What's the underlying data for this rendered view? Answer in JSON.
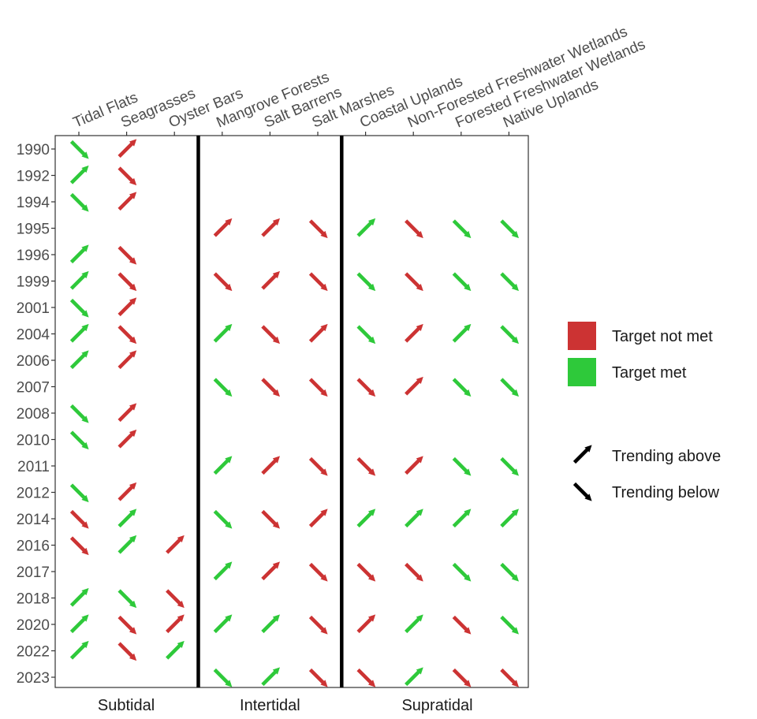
{
  "chart_data": {
    "type": "heatmap",
    "categories": [
      "Tidal Flats",
      "Seagrasses",
      "Oyster Bars",
      "Mangrove Forests",
      "Salt Barrens",
      "Salt Marshes",
      "Coastal Uplands",
      "Non-Forested Freshwater Wetlands",
      "Forested Freshwater Wetlands",
      "Native Uplands"
    ],
    "years": [
      "1990",
      "1992",
      "1994",
      "1995",
      "1996",
      "1999",
      "2001",
      "2004",
      "2006",
      "2007",
      "2008",
      "2010",
      "2011",
      "2012",
      "2014",
      "2016",
      "2017",
      "2018",
      "2020",
      "2022",
      "2023"
    ],
    "groups": [
      {
        "label": "Subtidal",
        "categories": [
          "Tidal Flats",
          "Seagrasses",
          "Oyster Bars"
        ]
      },
      {
        "label": "Intertidal",
        "categories": [
          "Mangrove Forests",
          "Salt Barrens",
          "Salt Marshes"
        ]
      },
      {
        "label": "Supratidal",
        "categories": [
          "Coastal Uplands",
          "Non-Forested Freshwater Wetlands",
          "Forested Freshwater Wetlands",
          "Native Uplands"
        ]
      }
    ],
    "points": [
      {
        "year": "1990",
        "category": "Tidal Flats",
        "target": "met",
        "trend": "below"
      },
      {
        "year": "1990",
        "category": "Seagrasses",
        "target": "not met",
        "trend": "above"
      },
      {
        "year": "1992",
        "category": "Tidal Flats",
        "target": "met",
        "trend": "above"
      },
      {
        "year": "1992",
        "category": "Seagrasses",
        "target": "not met",
        "trend": "below"
      },
      {
        "year": "1994",
        "category": "Tidal Flats",
        "target": "met",
        "trend": "below"
      },
      {
        "year": "1994",
        "category": "Seagrasses",
        "target": "not met",
        "trend": "above"
      },
      {
        "year": "1995",
        "category": "Mangrove Forests",
        "target": "not met",
        "trend": "above"
      },
      {
        "year": "1995",
        "category": "Salt Barrens",
        "target": "not met",
        "trend": "above"
      },
      {
        "year": "1995",
        "category": "Salt Marshes",
        "target": "not met",
        "trend": "below"
      },
      {
        "year": "1995",
        "category": "Coastal Uplands",
        "target": "met",
        "trend": "above"
      },
      {
        "year": "1995",
        "category": "Non-Forested Freshwater Wetlands",
        "target": "not met",
        "trend": "below"
      },
      {
        "year": "1995",
        "category": "Forested Freshwater Wetlands",
        "target": "met",
        "trend": "below"
      },
      {
        "year": "1995",
        "category": "Native Uplands",
        "target": "met",
        "trend": "below"
      },
      {
        "year": "1996",
        "category": "Tidal Flats",
        "target": "met",
        "trend": "above"
      },
      {
        "year": "1996",
        "category": "Seagrasses",
        "target": "not met",
        "trend": "below"
      },
      {
        "year": "1999",
        "category": "Tidal Flats",
        "target": "met",
        "trend": "above"
      },
      {
        "year": "1999",
        "category": "Seagrasses",
        "target": "not met",
        "trend": "below"
      },
      {
        "year": "1999",
        "category": "Mangrove Forests",
        "target": "not met",
        "trend": "below"
      },
      {
        "year": "1999",
        "category": "Salt Barrens",
        "target": "not met",
        "trend": "above"
      },
      {
        "year": "1999",
        "category": "Salt Marshes",
        "target": "not met",
        "trend": "below"
      },
      {
        "year": "1999",
        "category": "Coastal Uplands",
        "target": "met",
        "trend": "below"
      },
      {
        "year": "1999",
        "category": "Non-Forested Freshwater Wetlands",
        "target": "not met",
        "trend": "below"
      },
      {
        "year": "1999",
        "category": "Forested Freshwater Wetlands",
        "target": "met",
        "trend": "below"
      },
      {
        "year": "1999",
        "category": "Native Uplands",
        "target": "met",
        "trend": "below"
      },
      {
        "year": "2001",
        "category": "Tidal Flats",
        "target": "met",
        "trend": "below"
      },
      {
        "year": "2001",
        "category": "Seagrasses",
        "target": "not met",
        "trend": "above"
      },
      {
        "year": "2004",
        "category": "Tidal Flats",
        "target": "met",
        "trend": "above"
      },
      {
        "year": "2004",
        "category": "Seagrasses",
        "target": "not met",
        "trend": "below"
      },
      {
        "year": "2004",
        "category": "Mangrove Forests",
        "target": "met",
        "trend": "above"
      },
      {
        "year": "2004",
        "category": "Salt Barrens",
        "target": "not met",
        "trend": "below"
      },
      {
        "year": "2004",
        "category": "Salt Marshes",
        "target": "not met",
        "trend": "above"
      },
      {
        "year": "2004",
        "category": "Coastal Uplands",
        "target": "met",
        "trend": "below"
      },
      {
        "year": "2004",
        "category": "Non-Forested Freshwater Wetlands",
        "target": "not met",
        "trend": "above"
      },
      {
        "year": "2004",
        "category": "Forested Freshwater Wetlands",
        "target": "met",
        "trend": "above"
      },
      {
        "year": "2004",
        "category": "Native Uplands",
        "target": "met",
        "trend": "below"
      },
      {
        "year": "2006",
        "category": "Tidal Flats",
        "target": "met",
        "trend": "above"
      },
      {
        "year": "2006",
        "category": "Seagrasses",
        "target": "not met",
        "trend": "above"
      },
      {
        "year": "2007",
        "category": "Mangrove Forests",
        "target": "met",
        "trend": "below"
      },
      {
        "year": "2007",
        "category": "Salt Barrens",
        "target": "not met",
        "trend": "below"
      },
      {
        "year": "2007",
        "category": "Salt Marshes",
        "target": "not met",
        "trend": "below"
      },
      {
        "year": "2007",
        "category": "Coastal Uplands",
        "target": "not met",
        "trend": "below"
      },
      {
        "year": "2007",
        "category": "Non-Forested Freshwater Wetlands",
        "target": "not met",
        "trend": "above"
      },
      {
        "year": "2007",
        "category": "Forested Freshwater Wetlands",
        "target": "met",
        "trend": "below"
      },
      {
        "year": "2007",
        "category": "Native Uplands",
        "target": "met",
        "trend": "below"
      },
      {
        "year": "2008",
        "category": "Tidal Flats",
        "target": "met",
        "trend": "below"
      },
      {
        "year": "2008",
        "category": "Seagrasses",
        "target": "not met",
        "trend": "above"
      },
      {
        "year": "2010",
        "category": "Tidal Flats",
        "target": "met",
        "trend": "below"
      },
      {
        "year": "2010",
        "category": "Seagrasses",
        "target": "not met",
        "trend": "above"
      },
      {
        "year": "2011",
        "category": "Mangrove Forests",
        "target": "met",
        "trend": "above"
      },
      {
        "year": "2011",
        "category": "Salt Barrens",
        "target": "not met",
        "trend": "above"
      },
      {
        "year": "2011",
        "category": "Salt Marshes",
        "target": "not met",
        "trend": "below"
      },
      {
        "year": "2011",
        "category": "Coastal Uplands",
        "target": "not met",
        "trend": "below"
      },
      {
        "year": "2011",
        "category": "Non-Forested Freshwater Wetlands",
        "target": "not met",
        "trend": "above"
      },
      {
        "year": "2011",
        "category": "Forested Freshwater Wetlands",
        "target": "met",
        "trend": "below"
      },
      {
        "year": "2011",
        "category": "Native Uplands",
        "target": "met",
        "trend": "below"
      },
      {
        "year": "2012",
        "category": "Tidal Flats",
        "target": "met",
        "trend": "below"
      },
      {
        "year": "2012",
        "category": "Seagrasses",
        "target": "not met",
        "trend": "above"
      },
      {
        "year": "2014",
        "category": "Tidal Flats",
        "target": "not met",
        "trend": "below"
      },
      {
        "year": "2014",
        "category": "Seagrasses",
        "target": "met",
        "trend": "above"
      },
      {
        "year": "2014",
        "category": "Mangrove Forests",
        "target": "met",
        "trend": "below"
      },
      {
        "year": "2014",
        "category": "Salt Barrens",
        "target": "not met",
        "trend": "below"
      },
      {
        "year": "2014",
        "category": "Salt Marshes",
        "target": "not met",
        "trend": "above"
      },
      {
        "year": "2014",
        "category": "Coastal Uplands",
        "target": "met",
        "trend": "above"
      },
      {
        "year": "2014",
        "category": "Non-Forested Freshwater Wetlands",
        "target": "met",
        "trend": "above"
      },
      {
        "year": "2014",
        "category": "Forested Freshwater Wetlands",
        "target": "met",
        "trend": "above"
      },
      {
        "year": "2014",
        "category": "Native Uplands",
        "target": "met",
        "trend": "above"
      },
      {
        "year": "2016",
        "category": "Tidal Flats",
        "target": "not met",
        "trend": "below"
      },
      {
        "year": "2016",
        "category": "Seagrasses",
        "target": "met",
        "trend": "above"
      },
      {
        "year": "2016",
        "category": "Oyster Bars",
        "target": "not met",
        "trend": "above"
      },
      {
        "year": "2017",
        "category": "Mangrove Forests",
        "target": "met",
        "trend": "above"
      },
      {
        "year": "2017",
        "category": "Salt Barrens",
        "target": "not met",
        "trend": "above"
      },
      {
        "year": "2017",
        "category": "Salt Marshes",
        "target": "not met",
        "trend": "below"
      },
      {
        "year": "2017",
        "category": "Coastal Uplands",
        "target": "not met",
        "trend": "below"
      },
      {
        "year": "2017",
        "category": "Non-Forested Freshwater Wetlands",
        "target": "not met",
        "trend": "below"
      },
      {
        "year": "2017",
        "category": "Forested Freshwater Wetlands",
        "target": "met",
        "trend": "below"
      },
      {
        "year": "2017",
        "category": "Native Uplands",
        "target": "met",
        "trend": "below"
      },
      {
        "year": "2018",
        "category": "Tidal Flats",
        "target": "met",
        "trend": "above"
      },
      {
        "year": "2018",
        "category": "Seagrasses",
        "target": "met",
        "trend": "below"
      },
      {
        "year": "2018",
        "category": "Oyster Bars",
        "target": "not met",
        "trend": "below"
      },
      {
        "year": "2020",
        "category": "Tidal Flats",
        "target": "met",
        "trend": "above"
      },
      {
        "year": "2020",
        "category": "Seagrasses",
        "target": "not met",
        "trend": "below"
      },
      {
        "year": "2020",
        "category": "Oyster Bars",
        "target": "not met",
        "trend": "above"
      },
      {
        "year": "2020",
        "category": "Mangrove Forests",
        "target": "met",
        "trend": "above"
      },
      {
        "year": "2020",
        "category": "Salt Barrens",
        "target": "met",
        "trend": "above"
      },
      {
        "year": "2020",
        "category": "Salt Marshes",
        "target": "not met",
        "trend": "below"
      },
      {
        "year": "2020",
        "category": "Coastal Uplands",
        "target": "not met",
        "trend": "above"
      },
      {
        "year": "2020",
        "category": "Non-Forested Freshwater Wetlands",
        "target": "met",
        "trend": "above"
      },
      {
        "year": "2020",
        "category": "Forested Freshwater Wetlands",
        "target": "not met",
        "trend": "below"
      },
      {
        "year": "2020",
        "category": "Native Uplands",
        "target": "met",
        "trend": "below"
      },
      {
        "year": "2022",
        "category": "Tidal Flats",
        "target": "met",
        "trend": "above"
      },
      {
        "year": "2022",
        "category": "Seagrasses",
        "target": "not met",
        "trend": "below"
      },
      {
        "year": "2022",
        "category": "Oyster Bars",
        "target": "met",
        "trend": "above"
      },
      {
        "year": "2023",
        "category": "Mangrove Forests",
        "target": "met",
        "trend": "below"
      },
      {
        "year": "2023",
        "category": "Salt Barrens",
        "target": "met",
        "trend": "above"
      },
      {
        "year": "2023",
        "category": "Salt Marshes",
        "target": "not met",
        "trend": "below"
      },
      {
        "year": "2023",
        "category": "Coastal Uplands",
        "target": "not met",
        "trend": "below"
      },
      {
        "year": "2023",
        "category": "Non-Forested Freshwater Wetlands",
        "target": "met",
        "trend": "above"
      },
      {
        "year": "2023",
        "category": "Forested Freshwater Wetlands",
        "target": "not met",
        "trend": "below"
      },
      {
        "year": "2023",
        "category": "Native Uplands",
        "target": "not met",
        "trend": "below"
      }
    ],
    "legend": {
      "placement": "right",
      "target": [
        {
          "key": "not met",
          "label": "Target not met",
          "color": "#cc3333"
        },
        {
          "key": "met",
          "label": "Target met",
          "color": "#2ec93a"
        }
      ],
      "trend": [
        {
          "key": "above",
          "label": "Trending above"
        },
        {
          "key": "below",
          "label": "Trending below"
        }
      ]
    },
    "grid": false
  }
}
